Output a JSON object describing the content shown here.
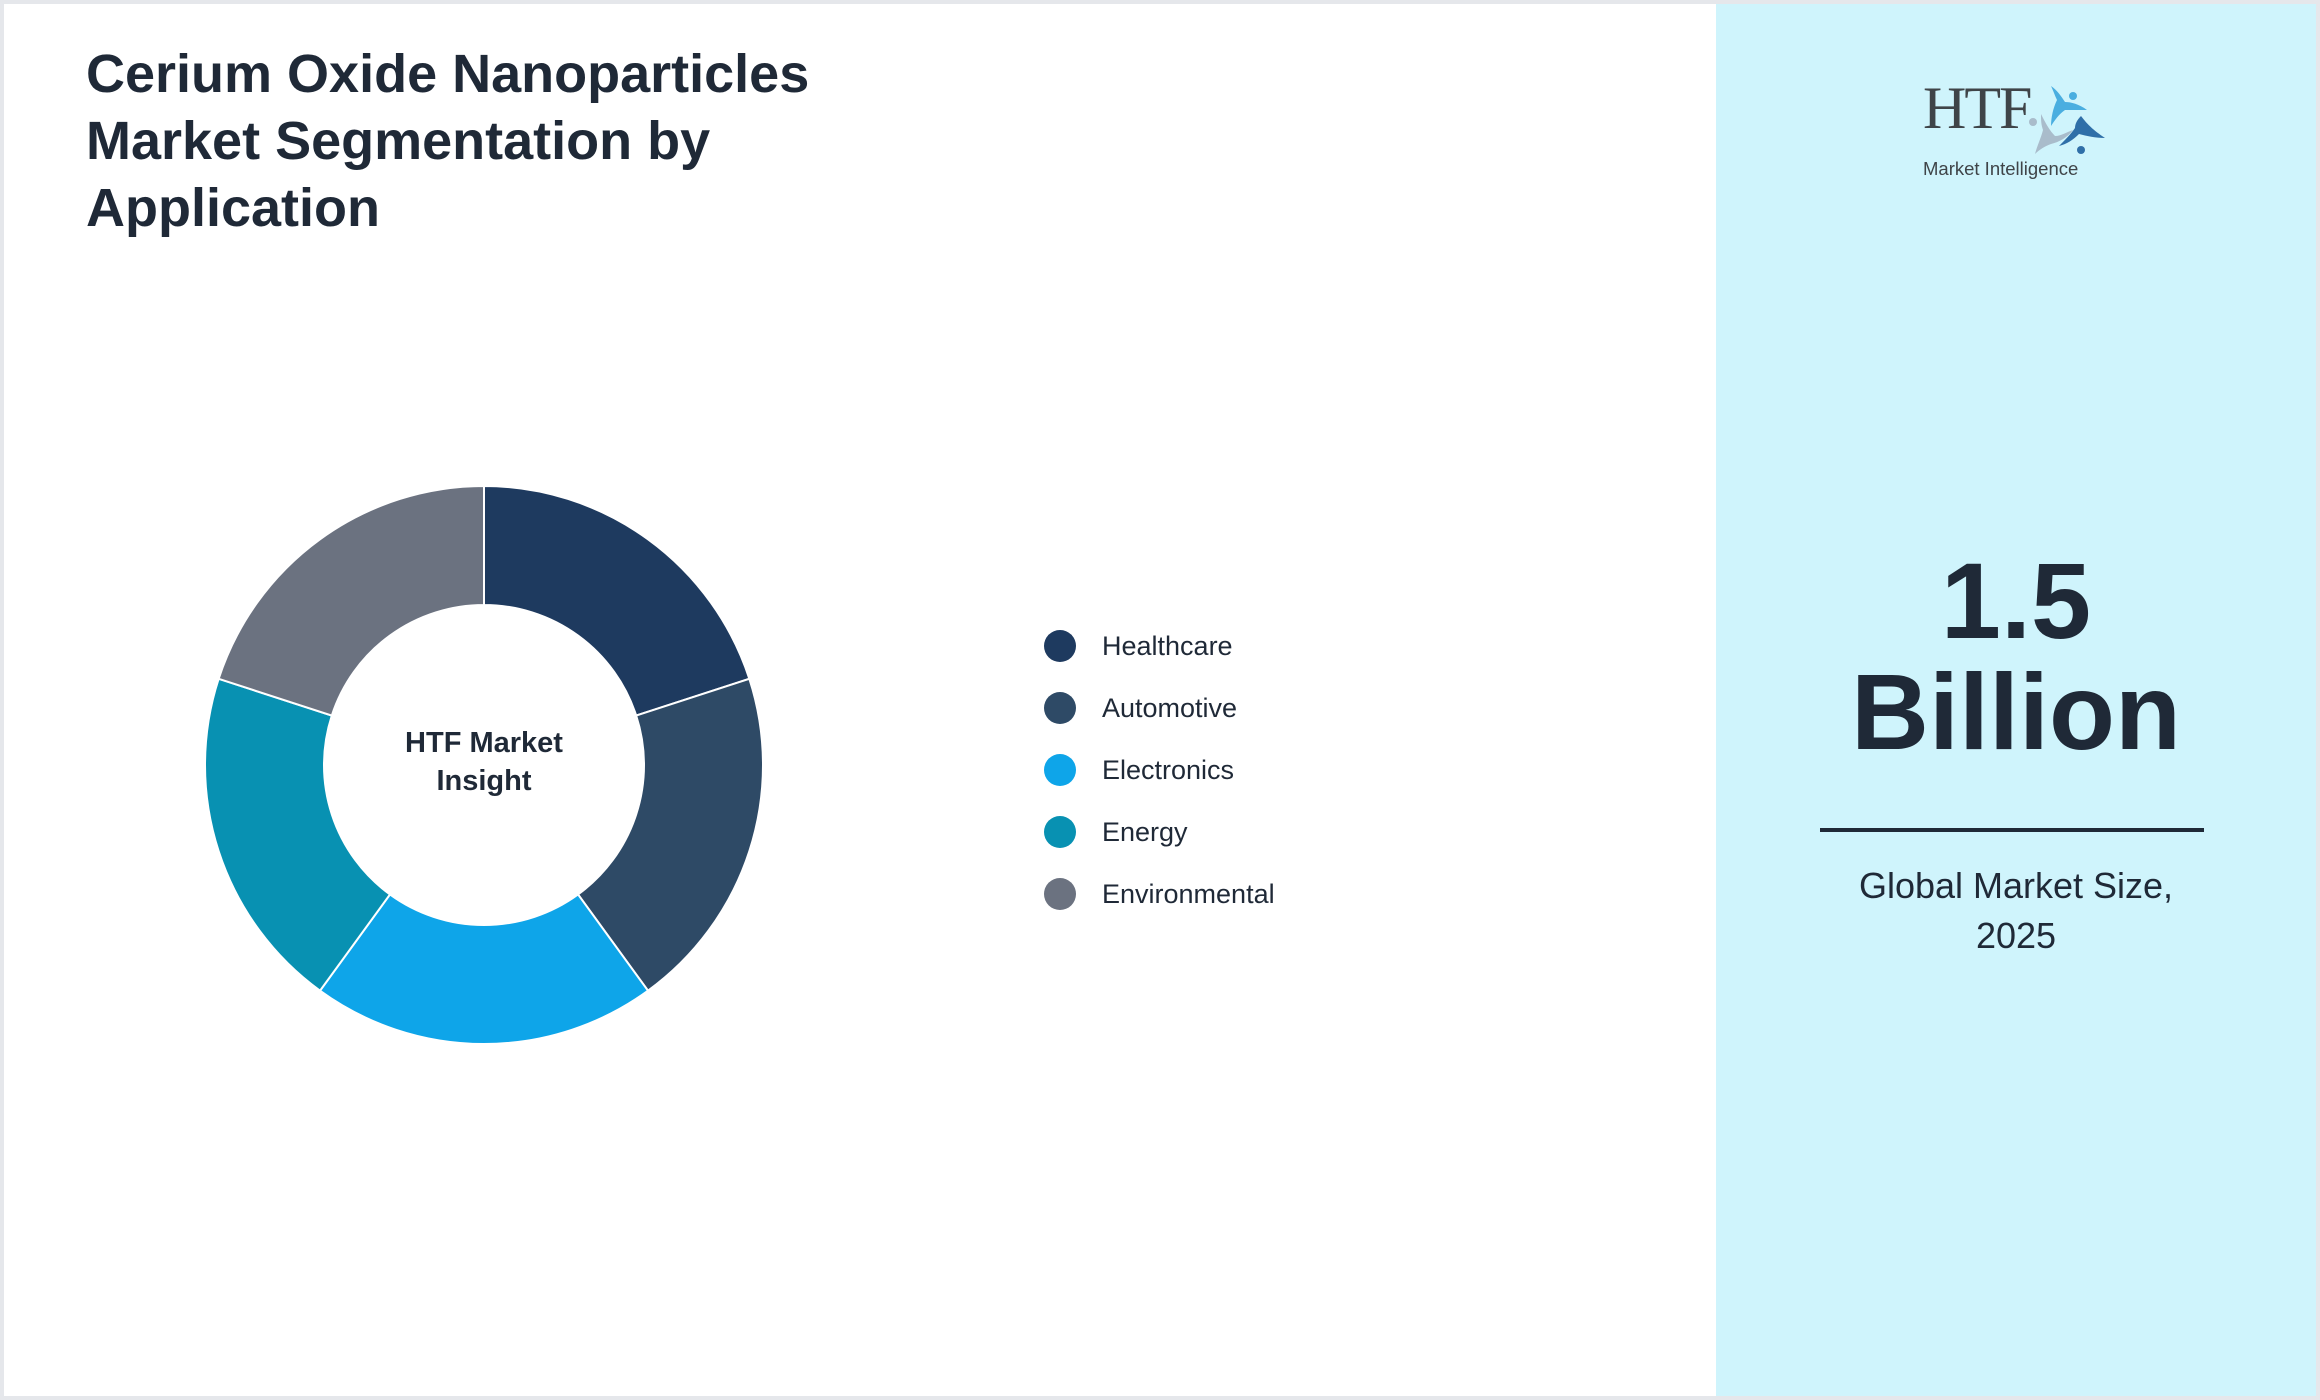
{
  "title": {
    "line1": "Cerium Oxide Nanoparticles",
    "line2": "Market Segmentation by",
    "line3": "Application"
  },
  "donut": {
    "center_line1": "HTF Market",
    "center_line2": "Insight"
  },
  "legend": [
    {
      "label": "Healthcare",
      "color": "#1e3a5f"
    },
    {
      "label": "Automotive",
      "color": "#2e4a66"
    },
    {
      "label": "Electronics",
      "color": "#0ea5e9"
    },
    {
      "label": "Energy",
      "color": "#0891b2"
    },
    {
      "label": "Environmental",
      "color": "#6b7280"
    }
  ],
  "panel": {
    "logo": {
      "brand": "HTF",
      "tagline": "Market Intelligence"
    },
    "stat_value_line1": "1.5",
    "stat_value_line2": "Billion",
    "caption_line1": "Global Market Size,",
    "caption_line2": "2025",
    "background": "#cff4fc"
  },
  "chart_data": {
    "type": "pie",
    "subtype": "donut",
    "title": "Cerium Oxide Nanoparticles Market Segmentation by Application",
    "center_label": "HTF Market Insight",
    "categories": [
      "Healthcare",
      "Automotive",
      "Electronics",
      "Energy",
      "Environmental"
    ],
    "values": [
      20,
      20,
      20,
      20,
      20
    ],
    "colors": [
      "#1e3a5f",
      "#2e4a66",
      "#0ea5e9",
      "#0891b2",
      "#6b7280"
    ],
    "start_angle": "12 o'clock, clockwise",
    "legend_position": "right",
    "headline_metric": {
      "value": "1.5 Billion",
      "label": "Global Market Size, 2025"
    }
  }
}
